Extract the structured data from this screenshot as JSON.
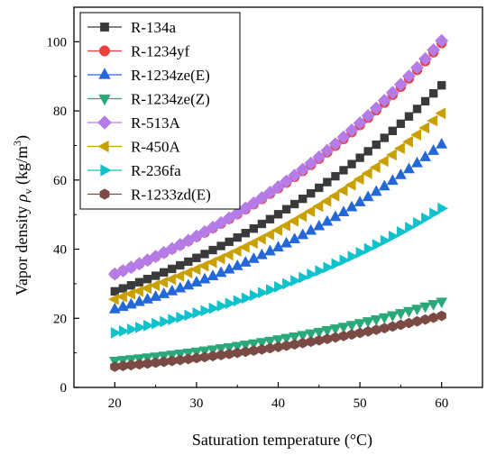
{
  "chart_data": {
    "type": "scatter",
    "title": "",
    "xlabel": "Saturation temperature (°C)",
    "ylabel": {
      "prefix": "Vapor density  ",
      "symbol": "ρ",
      "subscript": "v",
      "unit_open": " (kg/m",
      "unit_sup": "3",
      "unit_close": ")"
    },
    "xlim": [
      15,
      65
    ],
    "ylim": [
      0,
      110
    ],
    "xticks": [
      "20",
      "30",
      "40",
      "50",
      "60"
    ],
    "yticks": [
      "0",
      "20",
      "40",
      "60",
      "80",
      "100"
    ],
    "x": {
      "start": 20,
      "end": 60,
      "step": 1
    },
    "grid": false,
    "legend_position": "top-left",
    "series": [
      {
        "name": "R-134a",
        "marker": "square",
        "color": "#3a3a3a",
        "y20": 27.8,
        "y40": 50.1,
        "y60": 87.4
      },
      {
        "name": "R-1234yf",
        "marker": "circle",
        "color": "#e8413a",
        "y20": 32.8,
        "y40": 57.6,
        "y60": 99.6
      },
      {
        "name": "R-1234ze(E)",
        "marker": "triangle-up",
        "color": "#2468d8",
        "y20": 22.6,
        "y40": 40.5,
        "y60": 70.3
      },
      {
        "name": "R-1234ze(Z)",
        "marker": "triangle-down",
        "color": "#2aa87a",
        "y20": 7.7,
        "y40": 13.9,
        "y60": 24.8
      },
      {
        "name": "R-513A",
        "marker": "diamond",
        "color": "#b57be6",
        "y20": 32.8,
        "y40": 58.0,
        "y60": 100.3
      },
      {
        "name": "R-450A",
        "marker": "triangle-left",
        "color": "#c9a000",
        "y20": 25.5,
        "y40": 45.5,
        "y60": 79.3
      },
      {
        "name": "R-236fa",
        "marker": "triangle-right",
        "color": "#10c2cc",
        "y20": 15.8,
        "y40": 29.1,
        "y60": 51.8
      },
      {
        "name": "R-1233zd(E)",
        "marker": "hexagon",
        "color": "#7b4a44",
        "y20": 6.0,
        "y40": 11.7,
        "y60": 20.7
      }
    ]
  }
}
